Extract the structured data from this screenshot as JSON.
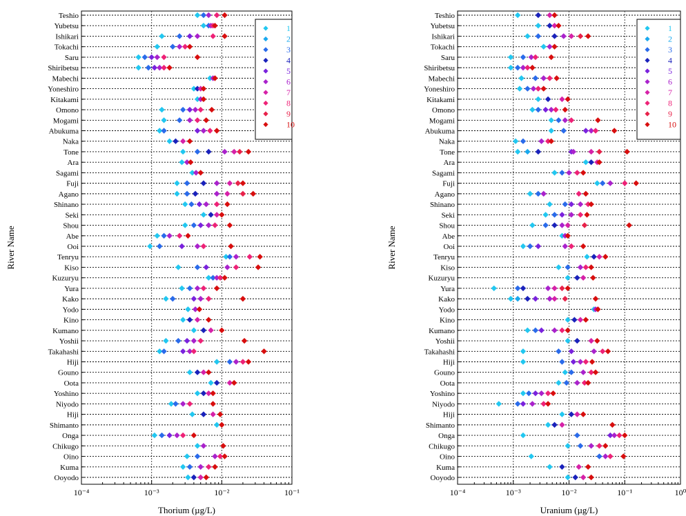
{
  "chart_data": [
    {
      "type": "scatter",
      "xscale": "log",
      "xlim": [
        0.0001,
        0.1
      ],
      "xlabel": "Thorium (µg/L)",
      "ylabel": "River Name",
      "tick_labels": [
        "10⁻⁴",
        "10⁻³",
        "10⁻²",
        "10⁻¹"
      ],
      "legend_placement": "top-right",
      "grid": true,
      "categories": [
        "Teshio",
        "Yubetsu",
        "Ishikari",
        "Tokachi",
        "Saru",
        "Shiribetsu",
        "Mabechi",
        "Yoneshiro",
        "Kitakami",
        "Omono",
        "Mogami",
        "Abukuma",
        "Naka",
        "Tone",
        "Ara",
        "Sagami",
        "Fuji",
        "Agano",
        "Shinano",
        "Seki",
        "Shou",
        "Abe",
        "Ooi",
        "Tenryu",
        "Kiso",
        "Kuzuryu",
        "Yura",
        "Kako",
        "Yodo",
        "Kino",
        "Kumano",
        "Yoshii",
        "Takahashi",
        "Hiji",
        "Gouno",
        "Oota",
        "Yoshino",
        "Niyodo",
        "Hiji",
        "Shimanto",
        "Onga",
        "Chikugo",
        "Oino",
        "Kuma",
        "Ooyodo"
      ],
      "points": [
        [
          0.0045,
          0.0055,
          0.0065,
          0.0085,
          0.011
        ],
        [
          0.0055,
          0.0065,
          0.007,
          0.0075,
          0.008
        ],
        [
          0.0014,
          0.0025,
          0.0035,
          0.0045,
          0.0075,
          0.011
        ],
        [
          0.0012,
          0.002,
          0.0025,
          0.003,
          0.0035
        ],
        [
          0.00065,
          0.0008,
          0.001,
          0.0012,
          0.0015,
          0.0045
        ],
        [
          0.00065,
          0.0009,
          0.0011,
          0.0013,
          0.0015,
          0.0018
        ],
        [
          0.0068,
          0.0075,
          0.008
        ],
        [
          0.004,
          0.0045,
          0.005,
          0.0055
        ],
        [
          0.0045,
          0.005,
          0.0055
        ],
        [
          0.0014,
          0.0028,
          0.0035,
          0.0042,
          0.005,
          0.0072
        ],
        [
          0.0015,
          0.0025,
          0.0035,
          0.0045,
          0.006
        ],
        [
          0.0013,
          0.0015,
          0.0045,
          0.0055,
          0.0068,
          0.0085
        ],
        [
          0.0018,
          0.0022,
          0.0028,
          0.0035
        ],
        [
          0.0028,
          0.0045,
          0.0065,
          0.011,
          0.015,
          0.018,
          0.024
        ],
        [
          0.0027,
          0.0032,
          0.0036
        ],
        [
          0.0038,
          0.0043,
          0.005
        ],
        [
          0.0023,
          0.0032,
          0.0055,
          0.0085,
          0.013,
          0.017,
          0.02
        ],
        [
          0.0023,
          0.0032,
          0.0042,
          0.0085,
          0.012,
          0.02,
          0.028
        ],
        [
          0.003,
          0.0037,
          0.0048,
          0.006,
          0.0085,
          0.012
        ],
        [
          0.0055,
          0.007,
          0.0085,
          0.01
        ],
        [
          0.003,
          0.004,
          0.005,
          0.0065,
          0.008,
          0.013
        ],
        [
          0.0012,
          0.0015,
          0.0018,
          0.0025,
          0.0033
        ],
        [
          0.00095,
          0.0013,
          0.0027,
          0.0045,
          0.0055,
          0.0135
        ],
        [
          0.0115,
          0.013,
          0.016,
          0.025,
          0.035
        ],
        [
          0.0024,
          0.0045,
          0.006,
          0.012,
          0.016,
          0.033
        ],
        [
          0.0065,
          0.0075,
          0.0085,
          0.0095,
          0.011
        ],
        [
          0.0027,
          0.0035,
          0.0045,
          0.0055,
          0.0085
        ],
        [
          0.0016,
          0.002,
          0.004,
          0.005,
          0.0065,
          0.02
        ],
        [
          0.0033,
          0.0042,
          0.0048
        ],
        [
          0.0028,
          0.0035,
          0.0045,
          0.0065
        ],
        [
          0.004,
          0.0055,
          0.007,
          0.01
        ],
        [
          0.0016,
          0.0024,
          0.0032,
          0.004,
          0.005,
          0.021
        ],
        [
          0.0013,
          0.0015,
          0.0028,
          0.0035,
          0.004,
          0.04
        ],
        [
          0.0085,
          0.013,
          0.016,
          0.02,
          0.024
        ],
        [
          0.0035,
          0.0045,
          0.0055,
          0.0065
        ],
        [
          0.007,
          0.0085,
          0.013,
          0.015
        ],
        [
          0.0045,
          0.0055,
          0.0065,
          0.0075
        ],
        [
          0.0019,
          0.0022,
          0.0028,
          0.0035,
          0.0075
        ],
        [
          0.0038,
          0.0055,
          0.0075,
          0.0095
        ],
        [
          0.0085,
          0.01
        ],
        [
          0.0011,
          0.0014,
          0.0018,
          0.0023,
          0.0028,
          0.004
        ],
        [
          0.0045,
          0.0055,
          0.0105
        ],
        [
          0.0032,
          0.0045,
          0.008,
          0.0095,
          0.011
        ],
        [
          0.0028,
          0.0035,
          0.005,
          0.0065,
          0.008
        ],
        [
          0.0033,
          0.004,
          0.005,
          0.006
        ]
      ],
      "legend": [
        "1",
        "2",
        "3",
        "4",
        "5",
        "6",
        "7",
        "8",
        "9",
        "10"
      ]
    },
    {
      "type": "scatter",
      "xscale": "log",
      "xlim": [
        0.0001,
        1
      ],
      "xlabel": "Uranium (µg/L)",
      "ylabel": "River Name",
      "tick_labels": [
        "10⁻⁴",
        "10⁻³",
        "10⁻²",
        "10⁻¹",
        "10⁰"
      ],
      "legend_placement": "top-right",
      "grid": true,
      "categories": [
        "Teshio",
        "Yubetsu",
        "Ishikari",
        "Tokachi",
        "Saru",
        "Shiribetsu",
        "Mabechi",
        "Yoneshiro",
        "Kitakami",
        "Omono",
        "Mogami",
        "Abukuma",
        "Naka",
        "Tone",
        "Ara",
        "Sagami",
        "Fuji",
        "Agano",
        "Shinano",
        "Seki",
        "Shou",
        "Abe",
        "Ooi",
        "Tenryu",
        "Kiso",
        "Kuzuryu",
        "Yura",
        "Kako",
        "Yodo",
        "Kino",
        "Kumano",
        "Yoshii",
        "Takahashi",
        "Hiji",
        "Gouno",
        "Oota",
        "Yoshino",
        "Niyodo",
        "Hiji",
        "Shimanto",
        "Onga",
        "Chikugo",
        "Oino",
        "Kuma",
        "Ooyodo"
      ],
      "points": [
        [
          0.0012,
          0.0028,
          0.0045,
          0.0055
        ],
        [
          0.0028,
          0.0045,
          0.0055,
          0.0065
        ],
        [
          0.0018,
          0.0028,
          0.0055,
          0.008,
          0.011,
          0.016,
          0.022
        ],
        [
          0.0035,
          0.0045,
          0.0055
        ],
        [
          0.0009,
          0.0015,
          0.0021,
          0.0025,
          0.0048
        ],
        [
          0.0009,
          0.0012,
          0.0015,
          0.0018,
          0.0022
        ],
        [
          0.0014,
          0.0025,
          0.0035,
          0.0045,
          0.006
        ],
        [
          0.0013,
          0.0018,
          0.0023,
          0.0028,
          0.0035
        ],
        [
          0.0028,
          0.0042,
          0.0075,
          0.0095
        ],
        [
          0.0022,
          0.0028,
          0.0038,
          0.0048,
          0.0058,
          0.0085
        ],
        [
          0.0048,
          0.0065,
          0.0085,
          0.011,
          0.033
        ],
        [
          0.0048,
          0.008,
          0.02,
          0.025,
          0.03,
          0.065
        ],
        [
          0.0011,
          0.0015,
          0.0032,
          0.0042,
          0.0048
        ],
        [
          0.0012,
          0.0018,
          0.0028,
          0.011,
          0.012,
          0.025,
          0.035,
          0.11
        ],
        [
          0.02,
          0.025,
          0.032,
          0.035
        ],
        [
          0.0055,
          0.0075,
          0.01,
          0.014,
          0.018
        ],
        [
          0.032,
          0.04,
          0.055,
          0.1,
          0.16
        ],
        [
          0.002,
          0.0028,
          0.0035,
          0.015,
          0.02
        ],
        [
          0.0045,
          0.0085,
          0.011,
          0.016,
          0.022,
          0.025
        ],
        [
          0.0038,
          0.0055,
          0.0075,
          0.011,
          0.016,
          0.021
        ],
        [
          0.0022,
          0.0038,
          0.0055,
          0.0075,
          0.0095,
          0.019,
          0.12
        ],
        [
          0.0075,
          0.0085,
          0.0095
        ],
        [
          0.0015,
          0.002,
          0.0028,
          0.0085,
          0.011,
          0.018
        ],
        [
          0.021,
          0.028,
          0.035,
          0.045
        ],
        [
          0.0065,
          0.0095,
          0.016,
          0.02,
          0.025
        ],
        [
          0.0095,
          0.014,
          0.018,
          0.027
        ],
        [
          0.00045,
          0.0012,
          0.0015,
          0.0042,
          0.0055,
          0.0075,
          0.0095
        ],
        [
          0.0009,
          0.0012,
          0.0018,
          0.0025,
          0.0045,
          0.0055,
          0.0085,
          0.03
        ],
        [
          0.028,
          0.03,
          0.033
        ],
        [
          0.0095,
          0.0125,
          0.016,
          0.02
        ],
        [
          0.0018,
          0.0025,
          0.0032,
          0.0055,
          0.0075,
          0.0095
        ],
        [
          0.0095,
          0.014,
          0.025,
          0.032
        ],
        [
          0.0015,
          0.0065,
          0.011,
          0.028,
          0.04,
          0.05
        ],
        [
          0.0015,
          0.0075,
          0.012,
          0.016,
          0.02,
          0.026
        ],
        [
          0.0085,
          0.011,
          0.018,
          0.025,
          0.03
        ],
        [
          0.0065,
          0.009,
          0.014,
          0.019,
          0.022
        ],
        [
          0.0015,
          0.0019,
          0.0025,
          0.0032,
          0.0042,
          0.0052
        ],
        [
          0.00055,
          0.0012,
          0.0015,
          0.0022,
          0.0035,
          0.0042
        ],
        [
          0.0075,
          0.011,
          0.014,
          0.018
        ],
        [
          0.0042,
          0.0055,
          0.0075,
          0.06
        ],
        [
          0.0015,
          0.014,
          0.055,
          0.065,
          0.08,
          0.1
        ],
        [
          0.0095,
          0.016,
          0.025,
          0.035,
          0.045
        ],
        [
          0.0021,
          0.035,
          0.045,
          0.055,
          0.095
        ],
        [
          0.0045,
          0.0075,
          0.015,
          0.022
        ],
        [
          0.0095,
          0.013,
          0.018,
          0.025
        ]
      ],
      "legend": [
        "1",
        "2",
        "3",
        "4",
        "5",
        "6",
        "7",
        "8",
        "9",
        "10"
      ]
    }
  ],
  "series_colors": [
    "#22c7f0",
    "#1aa9ee",
    "#2a6bea",
    "#1a22bb",
    "#7a22dd",
    "#aa22cc",
    "#d622a8",
    "#ee2277",
    "#e8224a",
    "#d80e0e"
  ]
}
